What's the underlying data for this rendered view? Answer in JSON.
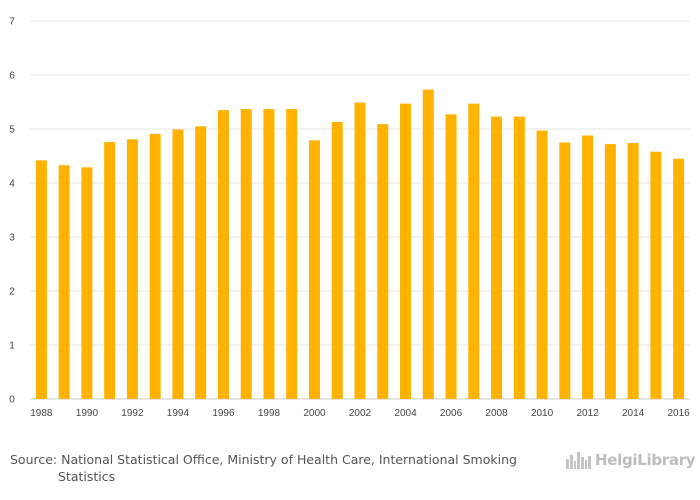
{
  "chart_data": {
    "type": "bar",
    "title": "",
    "xlabel": "",
    "ylabel": "",
    "ylim": [
      0,
      7
    ],
    "yticks": [
      0,
      1,
      2,
      3,
      4,
      5,
      6,
      7
    ],
    "grid": true,
    "bar_color": "#FFB300",
    "categories": [
      "1988",
      "1989",
      "1990",
      "1991",
      "1992",
      "1993",
      "1994",
      "1995",
      "1996",
      "1997",
      "1998",
      "1999",
      "2000",
      "2001",
      "2002",
      "2003",
      "2004",
      "2005",
      "2006",
      "2007",
      "2008",
      "2009",
      "2010",
      "2011",
      "2012",
      "2013",
      "2014",
      "2015",
      "2016"
    ],
    "xtick_labels": [
      "1988",
      "",
      "1990",
      "",
      "1992",
      "",
      "1994",
      "",
      "1996",
      "",
      "1998",
      "",
      "2000",
      "",
      "2002",
      "",
      "2004",
      "",
      "2006",
      "",
      "2008",
      "",
      "2010",
      "",
      "2012",
      "",
      "2014",
      "",
      "2016"
    ],
    "values": [
      4.42,
      4.33,
      4.29,
      4.76,
      4.81,
      4.91,
      4.99,
      5.05,
      5.35,
      5.37,
      5.37,
      5.37,
      4.79,
      5.13,
      5.49,
      5.09,
      5.47,
      5.73,
      5.27,
      5.47,
      5.23,
      5.23,
      4.97,
      4.75,
      4.88,
      4.72,
      4.74,
      4.58,
      4.45
    ]
  },
  "source": {
    "line1": "Source: National Statistical Office, Ministry of Health Care, International Smoking",
    "line2": "Statistics"
  },
  "logo": {
    "text": "HelgiLibrary",
    "icon": "city-skyline-icon",
    "color": "#bdbdbd"
  }
}
